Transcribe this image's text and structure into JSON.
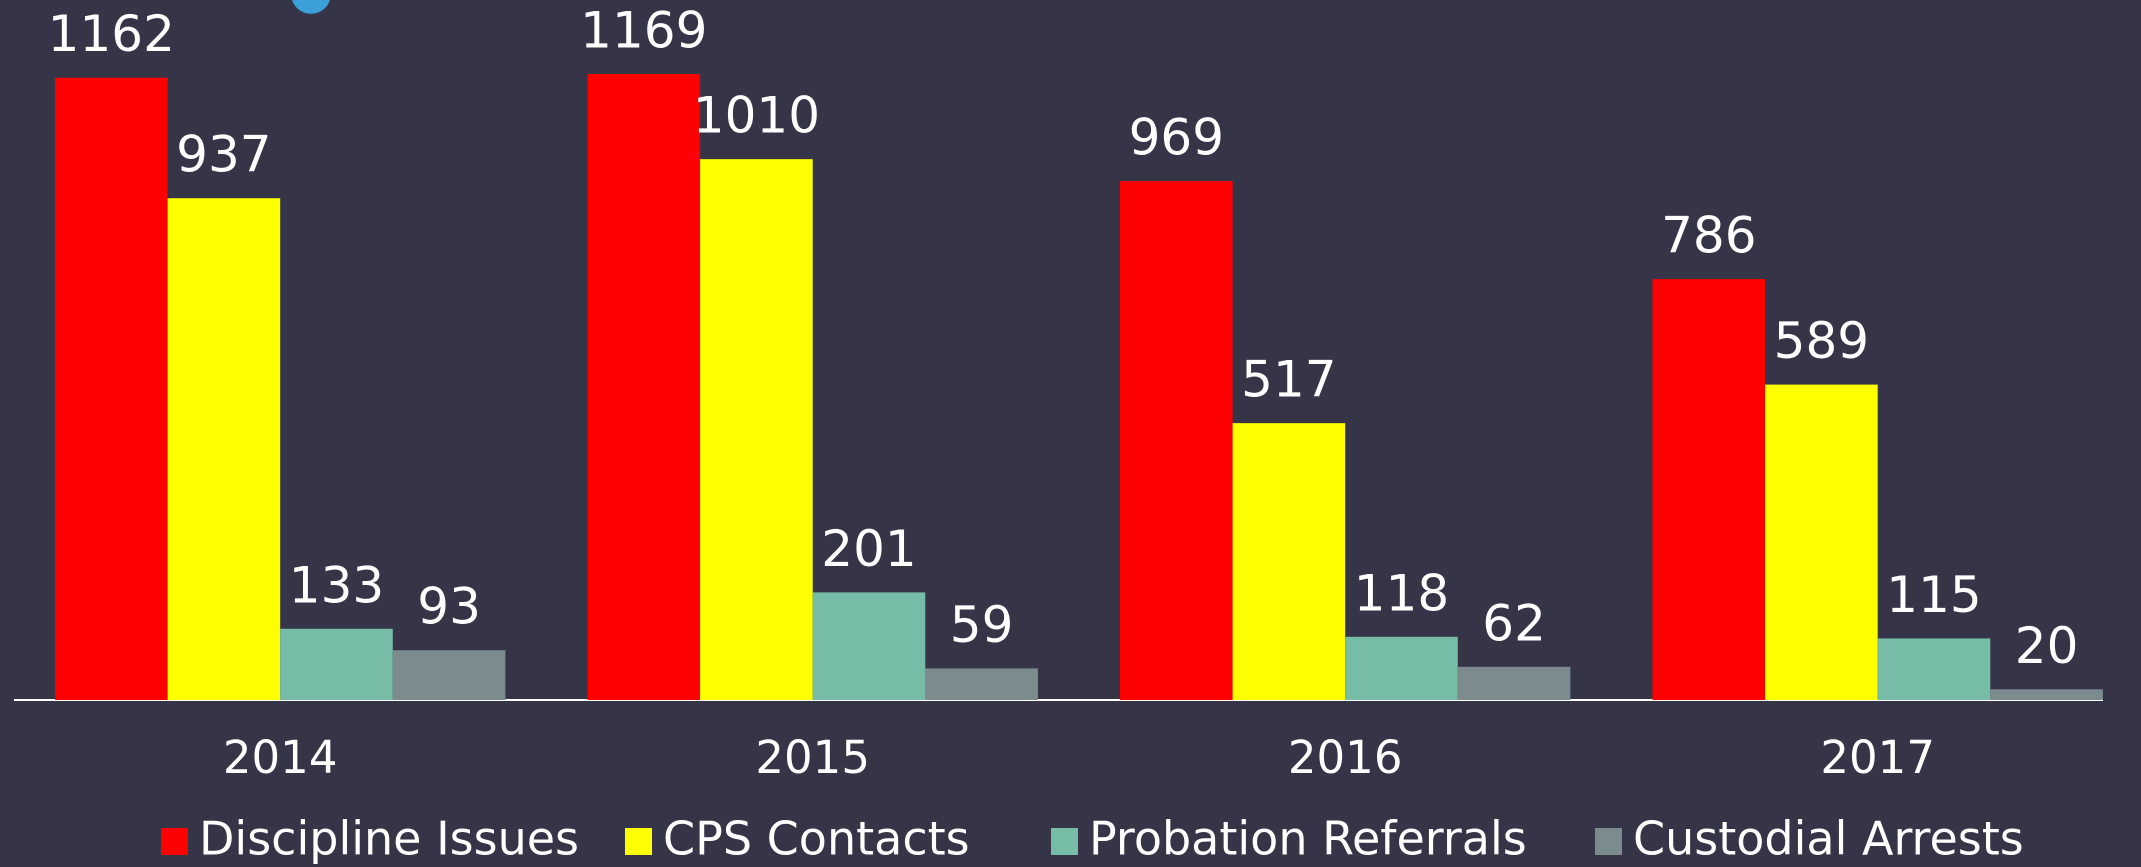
{
  "chart_data": {
    "type": "bar",
    "categories": [
      "2014",
      "2015",
      "2016",
      "2017"
    ],
    "series": [
      {
        "name": "Discipline Issues",
        "color": "#ff0000",
        "values": [
          1162,
          1169,
          969,
          786
        ]
      },
      {
        "name": "CPS Contacts",
        "color": "#ffff00",
        "values": [
          937,
          1010,
          517,
          589
        ]
      },
      {
        "name": "Probation Referrals",
        "color": "#76bca6",
        "values": [
          133,
          201,
          118,
          115
        ]
      },
      {
        "name": "Custodial Arrests",
        "color": "#7b8b8e",
        "values": [
          93,
          59,
          62,
          20
        ]
      }
    ],
    "legend": "bottom"
  }
}
